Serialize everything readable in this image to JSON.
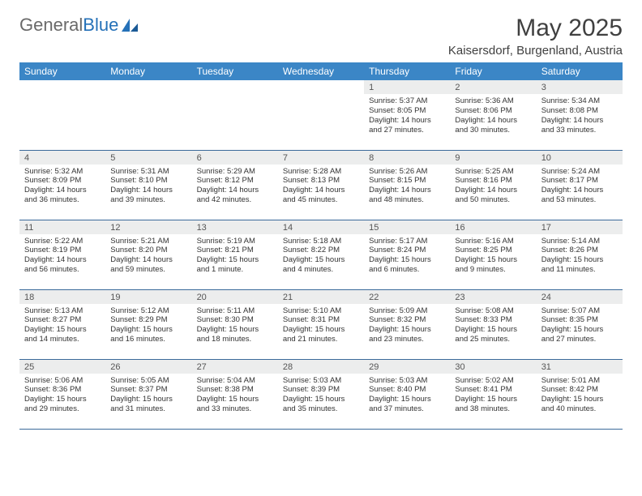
{
  "logo": {
    "text1": "General",
    "text2": "Blue"
  },
  "title": "May 2025",
  "location": "Kaisersdorf, Burgenland, Austria",
  "colors": {
    "header_bg": "#3b86c6",
    "header_text": "#ffffff",
    "daynum_bg": "#eceded",
    "row_border": "#3b6a9a",
    "logo_gray": "#6a6a6a",
    "logo_blue": "#2571b8"
  },
  "daysOfWeek": [
    "Sunday",
    "Monday",
    "Tuesday",
    "Wednesday",
    "Thursday",
    "Friday",
    "Saturday"
  ],
  "weeks": [
    [
      {
        "empty": true
      },
      {
        "empty": true
      },
      {
        "empty": true
      },
      {
        "empty": true
      },
      {
        "num": "1",
        "sunrise": "Sunrise: 5:37 AM",
        "sunset": "Sunset: 8:05 PM",
        "daylight": "Daylight: 14 hours and 27 minutes."
      },
      {
        "num": "2",
        "sunrise": "Sunrise: 5:36 AM",
        "sunset": "Sunset: 8:06 PM",
        "daylight": "Daylight: 14 hours and 30 minutes."
      },
      {
        "num": "3",
        "sunrise": "Sunrise: 5:34 AM",
        "sunset": "Sunset: 8:08 PM",
        "daylight": "Daylight: 14 hours and 33 minutes."
      }
    ],
    [
      {
        "num": "4",
        "sunrise": "Sunrise: 5:32 AM",
        "sunset": "Sunset: 8:09 PM",
        "daylight": "Daylight: 14 hours and 36 minutes."
      },
      {
        "num": "5",
        "sunrise": "Sunrise: 5:31 AM",
        "sunset": "Sunset: 8:10 PM",
        "daylight": "Daylight: 14 hours and 39 minutes."
      },
      {
        "num": "6",
        "sunrise": "Sunrise: 5:29 AM",
        "sunset": "Sunset: 8:12 PM",
        "daylight": "Daylight: 14 hours and 42 minutes."
      },
      {
        "num": "7",
        "sunrise": "Sunrise: 5:28 AM",
        "sunset": "Sunset: 8:13 PM",
        "daylight": "Daylight: 14 hours and 45 minutes."
      },
      {
        "num": "8",
        "sunrise": "Sunrise: 5:26 AM",
        "sunset": "Sunset: 8:15 PM",
        "daylight": "Daylight: 14 hours and 48 minutes."
      },
      {
        "num": "9",
        "sunrise": "Sunrise: 5:25 AM",
        "sunset": "Sunset: 8:16 PM",
        "daylight": "Daylight: 14 hours and 50 minutes."
      },
      {
        "num": "10",
        "sunrise": "Sunrise: 5:24 AM",
        "sunset": "Sunset: 8:17 PM",
        "daylight": "Daylight: 14 hours and 53 minutes."
      }
    ],
    [
      {
        "num": "11",
        "sunrise": "Sunrise: 5:22 AM",
        "sunset": "Sunset: 8:19 PM",
        "daylight": "Daylight: 14 hours and 56 minutes."
      },
      {
        "num": "12",
        "sunrise": "Sunrise: 5:21 AM",
        "sunset": "Sunset: 8:20 PM",
        "daylight": "Daylight: 14 hours and 59 minutes."
      },
      {
        "num": "13",
        "sunrise": "Sunrise: 5:19 AM",
        "sunset": "Sunset: 8:21 PM",
        "daylight": "Daylight: 15 hours and 1 minute."
      },
      {
        "num": "14",
        "sunrise": "Sunrise: 5:18 AM",
        "sunset": "Sunset: 8:22 PM",
        "daylight": "Daylight: 15 hours and 4 minutes."
      },
      {
        "num": "15",
        "sunrise": "Sunrise: 5:17 AM",
        "sunset": "Sunset: 8:24 PM",
        "daylight": "Daylight: 15 hours and 6 minutes."
      },
      {
        "num": "16",
        "sunrise": "Sunrise: 5:16 AM",
        "sunset": "Sunset: 8:25 PM",
        "daylight": "Daylight: 15 hours and 9 minutes."
      },
      {
        "num": "17",
        "sunrise": "Sunrise: 5:14 AM",
        "sunset": "Sunset: 8:26 PM",
        "daylight": "Daylight: 15 hours and 11 minutes."
      }
    ],
    [
      {
        "num": "18",
        "sunrise": "Sunrise: 5:13 AM",
        "sunset": "Sunset: 8:27 PM",
        "daylight": "Daylight: 15 hours and 14 minutes."
      },
      {
        "num": "19",
        "sunrise": "Sunrise: 5:12 AM",
        "sunset": "Sunset: 8:29 PM",
        "daylight": "Daylight: 15 hours and 16 minutes."
      },
      {
        "num": "20",
        "sunrise": "Sunrise: 5:11 AM",
        "sunset": "Sunset: 8:30 PM",
        "daylight": "Daylight: 15 hours and 18 minutes."
      },
      {
        "num": "21",
        "sunrise": "Sunrise: 5:10 AM",
        "sunset": "Sunset: 8:31 PM",
        "daylight": "Daylight: 15 hours and 21 minutes."
      },
      {
        "num": "22",
        "sunrise": "Sunrise: 5:09 AM",
        "sunset": "Sunset: 8:32 PM",
        "daylight": "Daylight: 15 hours and 23 minutes."
      },
      {
        "num": "23",
        "sunrise": "Sunrise: 5:08 AM",
        "sunset": "Sunset: 8:33 PM",
        "daylight": "Daylight: 15 hours and 25 minutes."
      },
      {
        "num": "24",
        "sunrise": "Sunrise: 5:07 AM",
        "sunset": "Sunset: 8:35 PM",
        "daylight": "Daylight: 15 hours and 27 minutes."
      }
    ],
    [
      {
        "num": "25",
        "sunrise": "Sunrise: 5:06 AM",
        "sunset": "Sunset: 8:36 PM",
        "daylight": "Daylight: 15 hours and 29 minutes."
      },
      {
        "num": "26",
        "sunrise": "Sunrise: 5:05 AM",
        "sunset": "Sunset: 8:37 PM",
        "daylight": "Daylight: 15 hours and 31 minutes."
      },
      {
        "num": "27",
        "sunrise": "Sunrise: 5:04 AM",
        "sunset": "Sunset: 8:38 PM",
        "daylight": "Daylight: 15 hours and 33 minutes."
      },
      {
        "num": "28",
        "sunrise": "Sunrise: 5:03 AM",
        "sunset": "Sunset: 8:39 PM",
        "daylight": "Daylight: 15 hours and 35 minutes."
      },
      {
        "num": "29",
        "sunrise": "Sunrise: 5:03 AM",
        "sunset": "Sunset: 8:40 PM",
        "daylight": "Daylight: 15 hours and 37 minutes."
      },
      {
        "num": "30",
        "sunrise": "Sunrise: 5:02 AM",
        "sunset": "Sunset: 8:41 PM",
        "daylight": "Daylight: 15 hours and 38 minutes."
      },
      {
        "num": "31",
        "sunrise": "Sunrise: 5:01 AM",
        "sunset": "Sunset: 8:42 PM",
        "daylight": "Daylight: 15 hours and 40 minutes."
      }
    ]
  ]
}
